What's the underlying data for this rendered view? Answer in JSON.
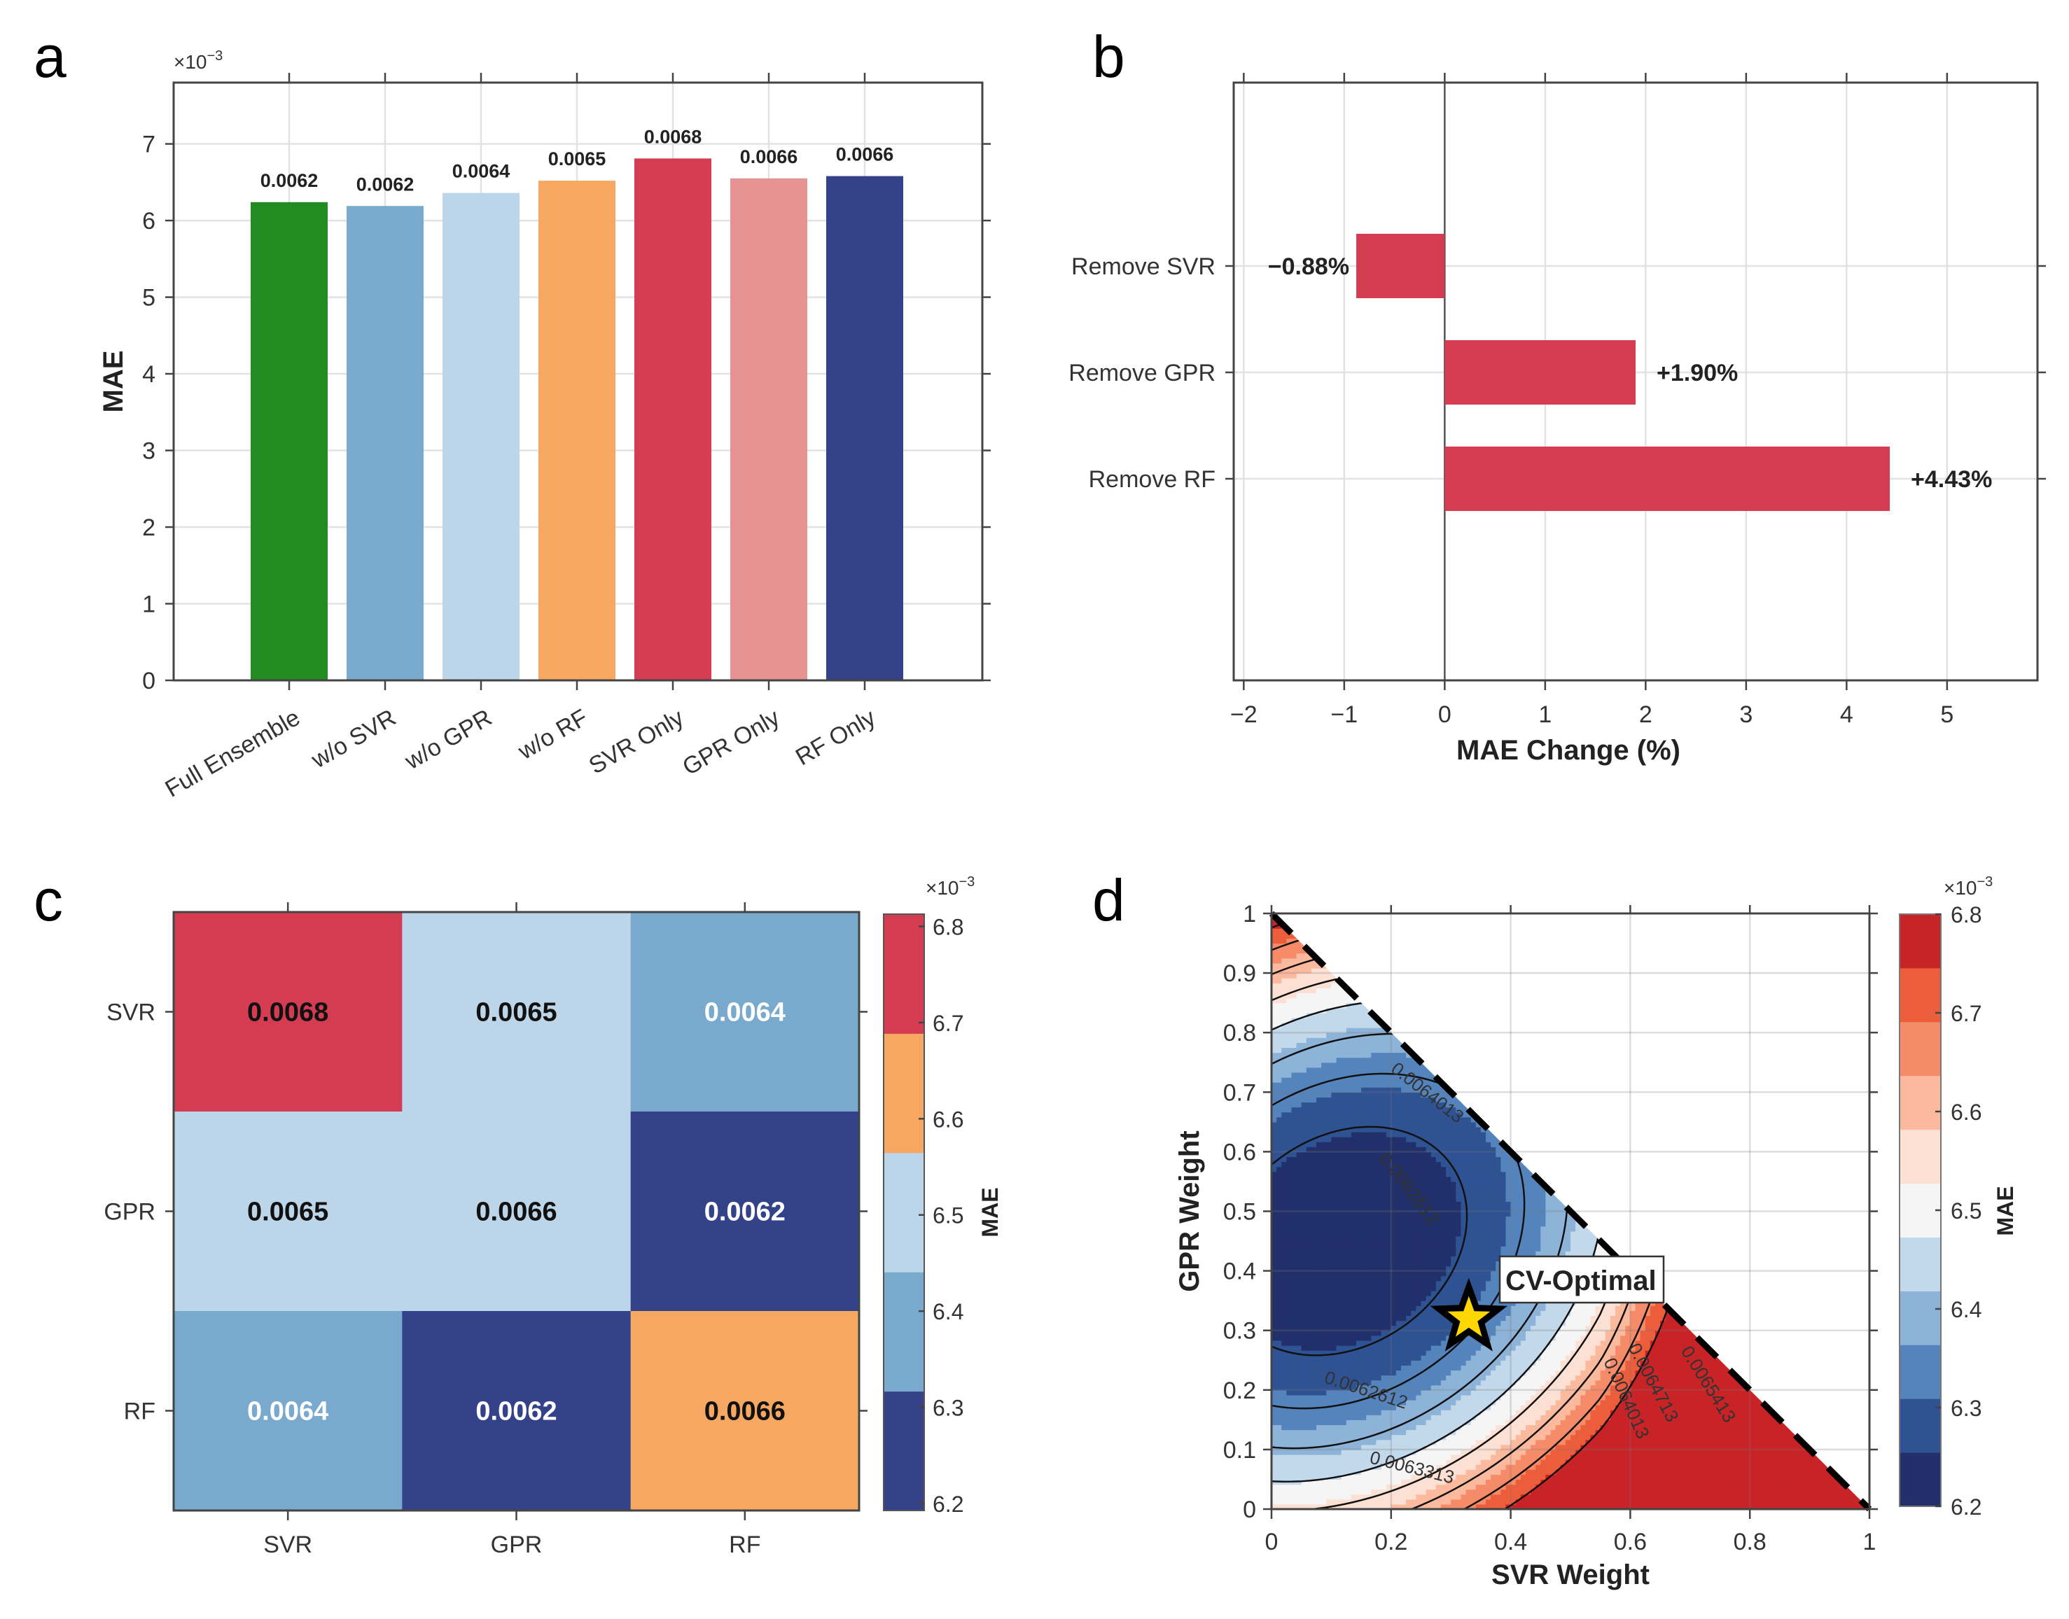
{
  "figure": {
    "panels": [
      "a",
      "b",
      "c",
      "d"
    ]
  },
  "chart_data": [
    {
      "panel": "a",
      "type": "bar",
      "title": "",
      "xlabel": "",
      "ylabel": "MAE",
      "y_multiplier": "×10⁻³",
      "ylim": [
        0,
        7.8
      ],
      "yticks": [
        0,
        1,
        2,
        3,
        4,
        5,
        6,
        7
      ],
      "grid": true,
      "categories": [
        "Full Ensemble",
        "w/o SVR",
        "w/o GPR",
        "w/o RF",
        "SVR Only",
        "GPR Only",
        "RF Only"
      ],
      "values": [
        6.24,
        6.19,
        6.36,
        6.52,
        6.81,
        6.55,
        6.58
      ],
      "value_labels": [
        "0.0062",
        "0.0062",
        "0.0064",
        "0.0065",
        "0.0068",
        "0.0066",
        "0.0066"
      ],
      "colors": [
        "#228B22",
        "#79AACD",
        "#BDD5E8",
        "#F6A862",
        "#D43D51",
        "#E69292",
        "#334289"
      ]
    },
    {
      "panel": "b",
      "type": "bar",
      "orientation": "horizontal",
      "title": "",
      "xlabel": "MAE Change (%)",
      "ylabel": "",
      "xlim": [
        -2.1,
        5.9
      ],
      "xticks": [
        -2,
        -1,
        0,
        1,
        2,
        3,
        4,
        5
      ],
      "xtick_labels": [
        "−2",
        "−1",
        "0",
        "1",
        "2",
        "3",
        "4",
        "5"
      ],
      "grid": true,
      "categories": [
        "Remove SVR",
        "Remove GPR",
        "Remove RF"
      ],
      "values": [
        -0.88,
        1.9,
        4.43
      ],
      "value_labels": [
        "−0.88%",
        "+1.90%",
        "+4.43%"
      ],
      "bar_color": "#D43D51"
    },
    {
      "panel": "c",
      "type": "heatmap",
      "title": "",
      "x_categories": [
        "SVR",
        "GPR",
        "RF"
      ],
      "y_categories": [
        "SVR",
        "GPR",
        "RF"
      ],
      "values": [
        [
          0.0068,
          0.0065,
          0.0064
        ],
        [
          0.0065,
          0.0066,
          0.0062
        ],
        [
          0.0064,
          0.0062,
          0.0066
        ]
      ],
      "cell_labels": [
        [
          "0.0068",
          "0.0065",
          "0.0064"
        ],
        [
          "0.0065",
          "0.0066",
          "0.0062"
        ],
        [
          "0.0064",
          "0.0062",
          "0.0066"
        ]
      ],
      "label_light": [
        [
          false,
          false,
          true
        ],
        [
          false,
          false,
          true
        ],
        [
          true,
          true,
          false
        ]
      ],
      "colorbar": {
        "label": "MAE",
        "multiplier": "×10⁻³",
        "range": [
          6.2,
          6.8
        ],
        "ticks": [
          6.2,
          6.3,
          6.4,
          6.5,
          6.6,
          6.7,
          6.8
        ],
        "levels": [
          6.22,
          6.34,
          6.46,
          6.58,
          6.7,
          6.82
        ],
        "colors": [
          "#334289",
          "#79AACD",
          "#BDD5E8",
          "#F6A862",
          "#D43D51"
        ]
      }
    },
    {
      "panel": "d",
      "type": "contour",
      "title": "",
      "xlabel": "SVR Weight",
      "ylabel": "GPR Weight",
      "xlim": [
        0,
        1
      ],
      "ylim": [
        0,
        1
      ],
      "xticks": [
        0,
        0.2,
        0.4,
        0.6,
        0.8,
        1
      ],
      "xtick_labels": [
        "0",
        "0.2",
        "0.4",
        "0.6",
        "0.8",
        "1"
      ],
      "yticks": [
        0,
        0.1,
        0.2,
        0.3,
        0.4,
        0.5,
        0.6,
        0.7,
        0.8,
        0.9,
        1
      ],
      "ytick_labels": [
        "0",
        "0.1",
        "0.2",
        "0.3",
        "0.4",
        "0.5",
        "0.6",
        "0.7",
        "0.8",
        "0.9",
        "1"
      ],
      "grid": true,
      "constraint_line": "SVR + GPR = 1 (dashed)",
      "contour_levels": [
        0.0062612,
        0.0063313,
        0.0064013,
        0.0064713,
        0.0065413
      ],
      "contour_labels": [
        "0.0062612",
        "0.0063313",
        "0.0064013",
        "0.0064713",
        "0.0065413"
      ],
      "optimum": {
        "label": "CV-Optimal",
        "svr": 0.33,
        "gpr": 0.32,
        "marker": "star",
        "color": "#FFD700"
      },
      "colorbar": {
        "label": "MAE",
        "multiplier": "×10⁻³",
        "range": [
          6.2,
          6.8
        ],
        "ticks": [
          6.2,
          6.3,
          6.4,
          6.5,
          6.6,
          6.7,
          6.8
        ],
        "colors": [
          "#21306A",
          "#2F5293",
          "#5584BD",
          "#8DB3D8",
          "#C2D9EC",
          "#F5F5F5",
          "#FDE0D4",
          "#FBB99E",
          "#F68B69",
          "#EC5D3C",
          "#C82326"
        ]
      }
    }
  ]
}
